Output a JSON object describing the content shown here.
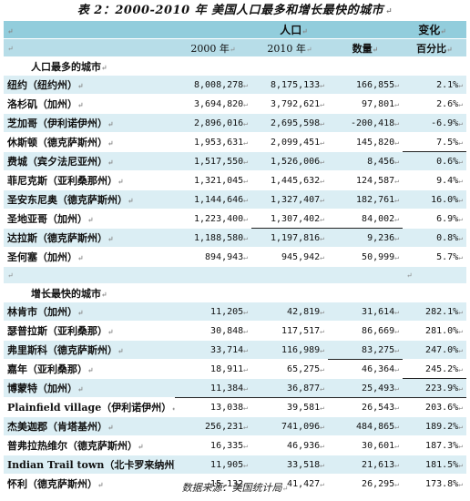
{
  "title": "表 2：2000-2010 年 美国人口最多和增长最快的城市",
  "header": {
    "group_population": "人口",
    "group_change": "变化",
    "col_2000": "2000 年",
    "col_2010": "2010 年",
    "col_count": "数量",
    "col_pct": "百分比"
  },
  "sections": [
    {
      "title": "人口最多的城市",
      "rows": [
        {
          "city": "纽约（纽约州）",
          "pop2000": "8,008,278",
          "pop2010": "8,175,133",
          "change": "166,855",
          "pct": "2.1%"
        },
        {
          "city": "洛杉矶（加州）",
          "pop2000": "3,694,820",
          "pop2010": "3,792,621",
          "change": "97,801",
          "pct": "2.6%"
        },
        {
          "city": "芝加哥（伊利诺伊州）",
          "pop2000": "2,896,016",
          "pop2010": "2,695,598",
          "change": "-200,418",
          "pct": "-6.9%"
        },
        {
          "city": "休斯顿（德克萨斯州）",
          "pop2000": "1,953,631",
          "pop2010": "2,099,451",
          "change": "145,820",
          "pct": "7.5%"
        },
        {
          "city": "费城（宾夕法尼亚州）",
          "pop2000": "1,517,550",
          "pop2010": "1,526,006",
          "change": "8,456",
          "pct": "0.6%"
        },
        {
          "city": "菲尼克斯（亚利桑那州）",
          "pop2000": "1,321,045",
          "pop2010": "1,445,632",
          "change": "124,587",
          "pct": "9.4%"
        },
        {
          "city": "圣安东尼奥（德克萨斯州）",
          "pop2000": "1,144,646",
          "pop2010": "1,327,407",
          "change": "182,761",
          "pct": "16.0%"
        },
        {
          "city": "圣地亚哥（加州）",
          "pop2000": "1,223,400",
          "pop2010": "1,307,402",
          "change": "84,002",
          "pct": "6.9%"
        },
        {
          "city": "达拉斯（德克萨斯州）",
          "pop2000": "1,188,580",
          "pop2010": "1,197,816",
          "change": "9,236",
          "pct": "0.8%"
        },
        {
          "city": "圣何塞（加州）",
          "pop2000": "894,943",
          "pop2010": "945,942",
          "change": "50,999",
          "pct": "5.7%"
        }
      ]
    },
    {
      "title": "增长最快的城市",
      "rows": [
        {
          "city": "林肯市（加州）",
          "pop2000": "11,205",
          "pop2010": "42,819",
          "change": "31,614",
          "pct": "282.1%"
        },
        {
          "city": "瑟普拉斯（亚利桑那）",
          "pop2000": "30,848",
          "pop2010": "117,517",
          "change": "86,669",
          "pct": "281.0%"
        },
        {
          "city": "弗里斯科（德克萨斯州）",
          "pop2000": "33,714",
          "pop2010": "116,989",
          "change": "83,275",
          "pct": "247.0%"
        },
        {
          "city": "嘉年（亚利桑那）",
          "pop2000": "18,911",
          "pop2010": "65,275",
          "change": "46,364",
          "pct": "245.2%"
        },
        {
          "city": "博蒙特（加州）",
          "pop2000": "11,384",
          "pop2010": "36,877",
          "change": "25,493",
          "pct": "223.9%"
        },
        {
          "city": "Plainfield village（伊利诺伊州）",
          "pop2000": "13,038",
          "pop2010": "39,581",
          "change": "26,543",
          "pct": "203.6%"
        },
        {
          "city": "杰美迦郡（肯塔基州）",
          "pop2000": "256,231",
          "pop2010": "741,096",
          "change": "484,865",
          "pct": "189.2%"
        },
        {
          "city": "普弗拉热维尔（德克萨斯州）",
          "pop2000": "16,335",
          "pop2010": "46,936",
          "change": "30,601",
          "pct": "187.3%"
        },
        {
          "city": "Indian Trail town（北卡罗来纳州）",
          "pop2000": "11,905",
          "pop2010": "33,518",
          "change": "21,613",
          "pct": "181.5%"
        },
        {
          "city": "怀利（德克萨斯州）",
          "pop2000": "15,132",
          "pop2010": "41,427",
          "change": "26,295",
          "pct": "173.8%"
        }
      ]
    }
  ],
  "source": "数据来源：美国统计局"
}
